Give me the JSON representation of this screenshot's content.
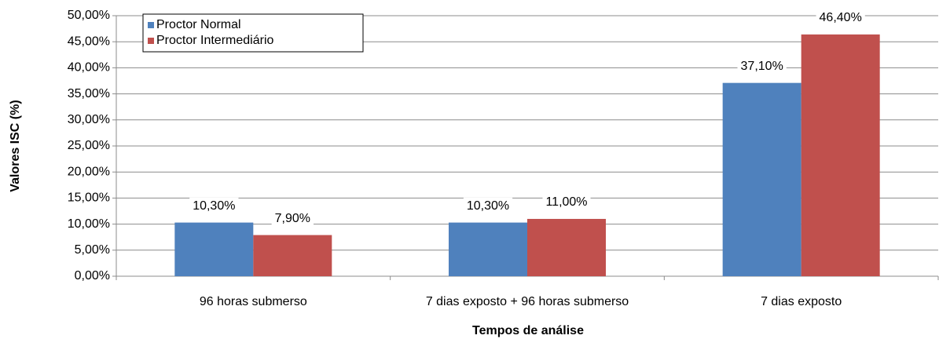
{
  "chart_data": {
    "type": "bar",
    "x_label": "Tempos de análise",
    "y_label": "Valores ISC (%)",
    "categories": [
      "96 horas submerso",
      "7 dias exposto + 96 horas submerso",
      "7 dias exposto"
    ],
    "series": [
      {
        "name": "Proctor Normal",
        "color": "#4f81bd",
        "values": [
          10.3,
          10.3,
          37.1
        ],
        "value_labels": [
          "10,30%",
          "10,30%",
          "37,10%"
        ]
      },
      {
        "name": "Proctor Intermediário",
        "color": "#c0504d",
        "values": [
          7.9,
          11.0,
          46.4
        ],
        "value_labels": [
          "7,90%",
          "11,00%",
          "46,40%"
        ]
      }
    ],
    "ylim": [
      0,
      50
    ],
    "yticks": [
      {
        "value": 0,
        "label": "0,00%"
      },
      {
        "value": 5,
        "label": "5,00%"
      },
      {
        "value": 10,
        "label": "10,00%"
      },
      {
        "value": 15,
        "label": "15,00%"
      },
      {
        "value": 20,
        "label": "20,00%"
      },
      {
        "value": 25,
        "label": "25,00%"
      },
      {
        "value": 30,
        "label": "30,00%"
      },
      {
        "value": 35,
        "label": "35,00%"
      },
      {
        "value": 40,
        "label": "40,00%"
      },
      {
        "value": 45,
        "label": "45,00%"
      },
      {
        "value": 50,
        "label": "50,00%"
      }
    ],
    "grid": true,
    "legend": "upper left"
  }
}
